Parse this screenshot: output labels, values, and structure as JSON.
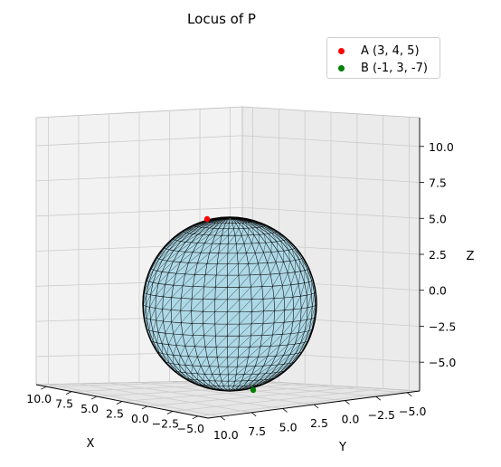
{
  "chart_data": {
    "type": "scatter",
    "title": "Locus of P",
    "xlabel": "X",
    "ylabel": "Y",
    "zlabel": "Z",
    "x_ticks": [
      "10.0",
      "7.5",
      "5.0",
      "2.5",
      "0.0",
      "−2.5",
      "−5.0"
    ],
    "y_ticks": [
      "10.0",
      "7.5",
      "5.0",
      "2.5",
      "0.0",
      "−2.5",
      "−5.0"
    ],
    "z_ticks": [
      "10.0",
      "7.5",
      "5.0",
      "2.5",
      "0.0",
      "−2.5",
      "−5.0"
    ],
    "xlim": [
      -6,
      11
    ],
    "ylim": [
      -6,
      11
    ],
    "zlim": [
      -7,
      12
    ],
    "grid": true,
    "legend_position": "top-right",
    "points": [
      {
        "name": "A (3, 4, 5)",
        "x": 3,
        "y": 4,
        "z": 5,
        "color": "#ff0000"
      },
      {
        "name": "B (-1, 3, -7)",
        "x": -1,
        "y": 3,
        "z": -7,
        "color": "#008000"
      }
    ],
    "surface": {
      "type": "sphere",
      "center": [
        1,
        3.5,
        -1
      ],
      "radius": 6.08,
      "color": "#add8e6",
      "edge_color": "#000000"
    }
  }
}
